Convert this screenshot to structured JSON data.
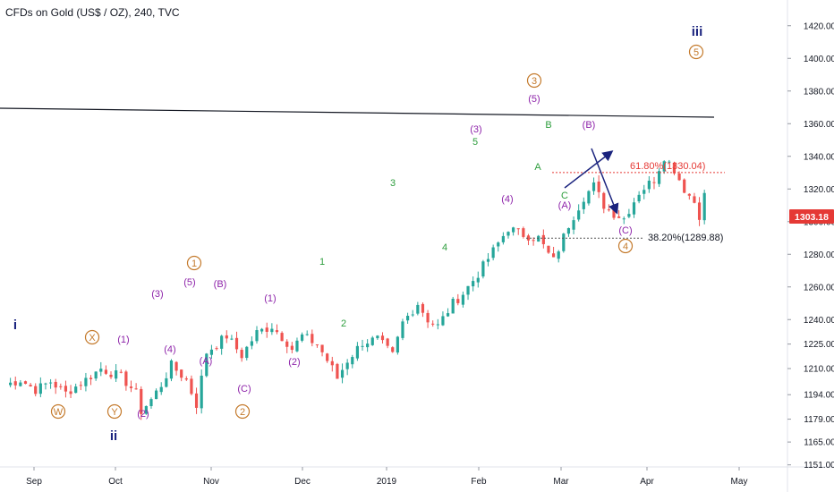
{
  "header": {
    "title": "CFDs on Gold (US$ / OZ), 240, TVC"
  },
  "chart_data": {
    "type": "candlestick",
    "symbol": "CFDs on Gold (US$ / OZ)",
    "interval": "240",
    "source": "TVC",
    "y_ticks": [
      "1151.00",
      "1165.00",
      "1179.00",
      "1194.00",
      "1210.00",
      "1225.00",
      "1240.00",
      "1260.00",
      "1280.00",
      "1300.00",
      "1320.00",
      "1340.00",
      "1360.00",
      "1380.00",
      "1400.00",
      "1420.00"
    ],
    "x_ticks": [
      "Sep",
      "Oct",
      "Nov",
      "Dec",
      "2019",
      "Feb",
      "Mar",
      "Apr",
      "May"
    ],
    "last_price": "1303.18",
    "price_path": [
      [
        0,
        1200
      ],
      [
        3,
        1203
      ],
      [
        6,
        1197
      ],
      [
        9,
        1202
      ],
      [
        12,
        1195
      ],
      [
        15,
        1201
      ],
      [
        19,
        1210
      ],
      [
        23,
        1205
      ],
      [
        26,
        1195
      ],
      [
        27,
        1184
      ],
      [
        29,
        1191
      ],
      [
        31,
        1200
      ],
      [
        33,
        1212
      ],
      [
        36,
        1203
      ],
      [
        38,
        1188
      ],
      [
        40,
        1220
      ],
      [
        44,
        1230
      ],
      [
        47,
        1218
      ],
      [
        50,
        1232
      ],
      [
        53,
        1236
      ],
      [
        56,
        1226
      ],
      [
        57,
        1222
      ],
      [
        59,
        1230
      ],
      [
        62,
        1225
      ],
      [
        65,
        1210
      ],
      [
        66,
        1204
      ],
      [
        68,
        1215
      ],
      [
        71,
        1226
      ],
      [
        74,
        1228
      ],
      [
        77,
        1218
      ],
      [
        79,
        1238
      ],
      [
        82,
        1250
      ],
      [
        84,
        1240
      ],
      [
        86,
        1236
      ],
      [
        89,
        1250
      ],
      [
        91,
        1256
      ],
      [
        94,
        1268
      ],
      [
        97,
        1282
      ],
      [
        100,
        1296
      ],
      [
        103,
        1292
      ],
      [
        106,
        1290
      ],
      [
        108,
        1280
      ],
      [
        109,
        1276
      ],
      [
        112,
        1298
      ],
      [
        115,
        1315
      ],
      [
        117,
        1322
      ],
      [
        119,
        1310
      ],
      [
        121,
        1305
      ],
      [
        123,
        1302
      ],
      [
        126,
        1318
      ],
      [
        129,
        1326
      ],
      [
        131,
        1340
      ],
      [
        133,
        1332
      ],
      [
        135,
        1320
      ],
      [
        137,
        1312
      ],
      [
        138,
        1304
      ],
      [
        139,
        1316
      ]
    ],
    "trendline_labels": [],
    "fib_levels": [
      {
        "label": "61.80%(1330.04)",
        "price": 1330.04,
        "color": "#e53935"
      },
      {
        "label": "38.20%(1289.88)",
        "price": 1289.88,
        "color": "#131722"
      }
    ],
    "wave_labels": [
      {
        "text": "i",
        "color": "#1a237e",
        "circle": false
      },
      {
        "text": "ii",
        "color": "#1a237e",
        "circle": false
      },
      {
        "text": "iii",
        "color": "#1a237e",
        "circle": false
      },
      {
        "text": "W",
        "color": "#c47a2c",
        "circle": true
      },
      {
        "text": "X",
        "color": "#c47a2c",
        "circle": true
      },
      {
        "text": "Y",
        "color": "#c47a2c",
        "circle": true
      },
      {
        "text": "1",
        "color": "#c47a2c",
        "circle": true
      },
      {
        "text": "2",
        "color": "#c47a2c",
        "circle": true
      },
      {
        "text": "3",
        "color": "#c47a2c",
        "circle": true
      },
      {
        "text": "4",
        "color": "#c47a2c",
        "circle": true
      },
      {
        "text": "5",
        "color": "#c47a2c",
        "circle": true
      },
      {
        "text": "(1)",
        "color": "#8e24aa",
        "circle": false
      },
      {
        "text": "(2)",
        "color": "#8e24aa",
        "circle": false
      },
      {
        "text": "(3)",
        "color": "#8e24aa",
        "circle": false
      },
      {
        "text": "(4)",
        "color": "#8e24aa",
        "circle": false
      },
      {
        "text": "(5)",
        "color": "#8e24aa",
        "circle": false
      },
      {
        "text": "(A)",
        "color": "#8e24aa",
        "circle": false
      },
      {
        "text": "(B)",
        "color": "#8e24aa",
        "circle": false
      },
      {
        "text": "(C)",
        "color": "#8e24aa",
        "circle": false
      },
      {
        "text": "(1)",
        "color": "#8e24aa",
        "circle": false
      },
      {
        "text": "(2)",
        "color": "#8e24aa",
        "circle": false
      },
      {
        "text": "(3)",
        "color": "#8e24aa",
        "circle": false
      },
      {
        "text": "(4)",
        "color": "#8e24aa",
        "circle": false
      },
      {
        "text": "(5)",
        "color": "#8e24aa",
        "circle": false
      },
      {
        "text": "(A)",
        "color": "#8e24aa",
        "circle": false
      },
      {
        "text": "(B)",
        "color": "#8e24aa",
        "circle": false
      },
      {
        "text": "(C)",
        "color": "#8e24aa",
        "circle": false
      },
      {
        "text": "1",
        "color": "#2e9e3e",
        "circle": false
      },
      {
        "text": "2",
        "color": "#2e9e3e",
        "circle": false
      },
      {
        "text": "3",
        "color": "#2e9e3e",
        "circle": false
      },
      {
        "text": "4",
        "color": "#2e9e3e",
        "circle": false
      },
      {
        "text": "5",
        "color": "#2e9e3e",
        "circle": false
      },
      {
        "text": "A",
        "color": "#2e9e3e",
        "circle": false
      },
      {
        "text": "B",
        "color": "#2e9e3e",
        "circle": false
      },
      {
        "text": "C",
        "color": "#2e9e3e",
        "circle": false
      }
    ],
    "colors": {
      "up": "#26a69a",
      "down": "#ef5350",
      "axis_text": "#131722",
      "price_badge": "#e53935",
      "projection": "#1a237e"
    }
  }
}
